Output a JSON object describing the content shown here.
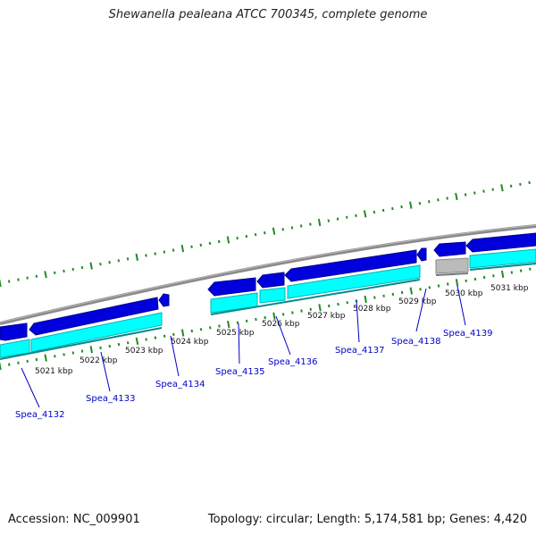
{
  "title": "Shewanella pealeana ATCC 700345, complete genome",
  "footer": {
    "accession": "Accession: NC_009901",
    "summary": "Topology: circular; Length: 5,174,581 bp; Genes: 4,420"
  },
  "colors": {
    "cds": "#0000dd",
    "gene": "#00ffff",
    "pseudo_gene": "#bbbbbb",
    "backbone": "#888888",
    "ticks": "#228b22",
    "label_link": "#0000cc"
  },
  "position_labels": [
    "5021 kbp",
    "5022 kbp",
    "5023 kbp",
    "5024 kbp",
    "5025 kbp",
    "5026 kbp",
    "5027 kbp",
    "5028 kbp",
    "5029 kbp",
    "5030 kbp",
    "5031 kbp"
  ],
  "gene_labels": [
    "Spea_4132",
    "Spea_4133",
    "Spea_4134",
    "Spea_4135",
    "Spea_4136",
    "Spea_4137",
    "Spea_4138",
    "Spea_4139"
  ]
}
